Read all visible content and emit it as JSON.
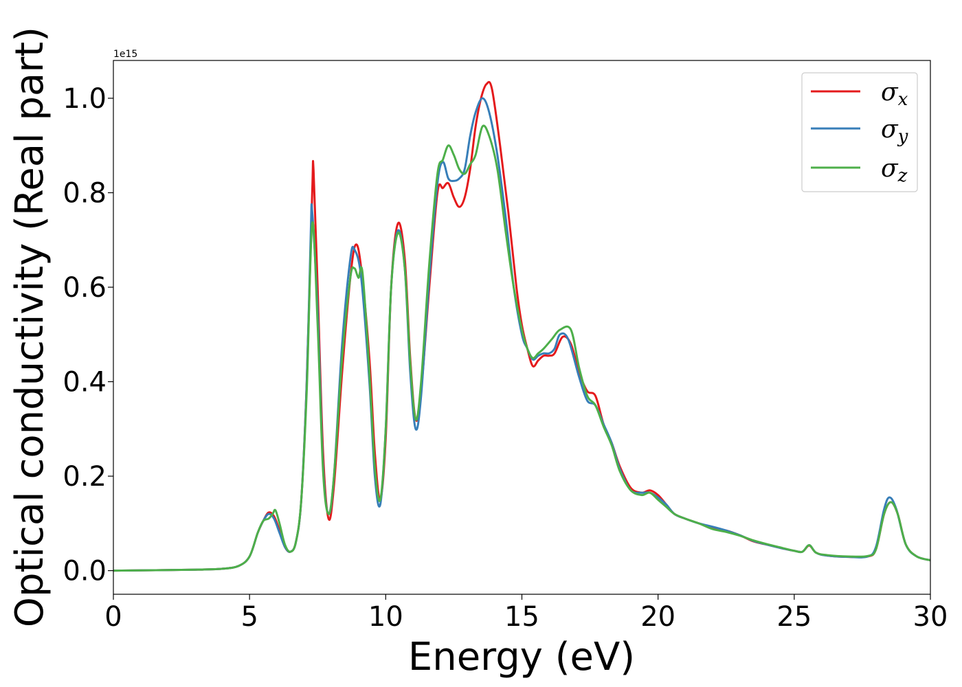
{
  "chart_data": {
    "type": "line",
    "title": "",
    "xlabel": "Energy (eV)",
    "ylabel": "Optical conductivity (Real part)",
    "y_offset_label": "1e15",
    "xlim": [
      0,
      30
    ],
    "ylim": [
      -0.05,
      1.08
    ],
    "x_ticks": [
      0,
      5,
      10,
      15,
      20,
      25,
      30
    ],
    "y_ticks": [
      0.0,
      0.2,
      0.4,
      0.6,
      0.8,
      1.0
    ],
    "x_tick_labels": [
      "0",
      "5",
      "10",
      "15",
      "20",
      "25",
      "30"
    ],
    "y_tick_labels": [
      "0.0",
      "0.2",
      "0.4",
      "0.6",
      "0.8",
      "1.0"
    ],
    "grid": false,
    "legend_position": "top-right",
    "series": [
      {
        "name": "σ",
        "subscript": "x",
        "color": "#e41a1c",
        "points": [
          [
            0,
            0
          ],
          [
            3,
            0.002
          ],
          [
            4,
            0.004
          ],
          [
            4.6,
            0.01
          ],
          [
            5,
            0.03
          ],
          [
            5.3,
            0.08
          ],
          [
            5.5,
            0.105
          ],
          [
            5.7,
            0.123
          ],
          [
            5.9,
            0.115
          ],
          [
            6.1,
            0.085
          ],
          [
            6.3,
            0.05
          ],
          [
            6.5,
            0.04
          ],
          [
            6.7,
            0.06
          ],
          [
            6.9,
            0.15
          ],
          [
            7.1,
            0.4
          ],
          [
            7.3,
            0.8
          ],
          [
            7.35,
            0.848
          ],
          [
            7.5,
            0.6
          ],
          [
            7.7,
            0.25
          ],
          [
            7.9,
            0.11
          ],
          [
            8.1,
            0.18
          ],
          [
            8.4,
            0.42
          ],
          [
            8.7,
            0.62
          ],
          [
            8.9,
            0.69
          ],
          [
            9.1,
            0.64
          ],
          [
            9.4,
            0.45
          ],
          [
            9.6,
            0.25
          ],
          [
            9.8,
            0.15
          ],
          [
            10,
            0.28
          ],
          [
            10.2,
            0.6
          ],
          [
            10.45,
            0.735
          ],
          [
            10.7,
            0.66
          ],
          [
            10.9,
            0.45
          ],
          [
            11.1,
            0.32
          ],
          [
            11.3,
            0.38
          ],
          [
            11.6,
            0.6
          ],
          [
            11.9,
            0.8
          ],
          [
            12.1,
            0.81
          ],
          [
            12.3,
            0.82
          ],
          [
            12.5,
            0.79
          ],
          [
            12.7,
            0.77
          ],
          [
            12.9,
            0.79
          ],
          [
            13.1,
            0.85
          ],
          [
            13.3,
            0.94
          ],
          [
            13.5,
            1.0
          ],
          [
            13.7,
            1.03
          ],
          [
            13.9,
            1.02
          ],
          [
            14.2,
            0.9
          ],
          [
            14.5,
            0.76
          ],
          [
            14.8,
            0.6
          ],
          [
            15.0,
            0.52
          ],
          [
            15.2,
            0.47
          ],
          [
            15.4,
            0.433
          ],
          [
            15.6,
            0.445
          ],
          [
            15.8,
            0.455
          ],
          [
            16.0,
            0.455
          ],
          [
            16.2,
            0.46
          ],
          [
            16.5,
            0.495
          ],
          [
            16.8,
            0.48
          ],
          [
            17.1,
            0.42
          ],
          [
            17.4,
            0.38
          ],
          [
            17.7,
            0.37
          ],
          [
            18.0,
            0.31
          ],
          [
            18.3,
            0.27
          ],
          [
            18.6,
            0.22
          ],
          [
            19.0,
            0.175
          ],
          [
            19.4,
            0.165
          ],
          [
            19.7,
            0.17
          ],
          [
            20.0,
            0.16
          ],
          [
            20.3,
            0.14
          ],
          [
            20.6,
            0.12
          ],
          [
            21.0,
            0.11
          ],
          [
            21.5,
            0.1
          ],
          [
            22,
            0.09
          ],
          [
            22.5,
            0.085
          ],
          [
            23,
            0.075
          ],
          [
            23.5,
            0.062
          ],
          [
            24,
            0.055
          ],
          [
            24.5,
            0.048
          ],
          [
            25,
            0.042
          ],
          [
            25.3,
            0.04
          ],
          [
            25.55,
            0.053
          ],
          [
            25.8,
            0.038
          ],
          [
            26.2,
            0.032
          ],
          [
            27,
            0.029
          ],
          [
            27.7,
            0.03
          ],
          [
            28.0,
            0.045
          ],
          [
            28.3,
            0.12
          ],
          [
            28.55,
            0.145
          ],
          [
            28.8,
            0.12
          ],
          [
            29.1,
            0.055
          ],
          [
            29.5,
            0.03
          ],
          [
            30,
            0.022
          ]
        ]
      },
      {
        "name": "σ",
        "subscript": "y",
        "color": "#377eb8",
        "points": [
          [
            0,
            0
          ],
          [
            3,
            0.002
          ],
          [
            4,
            0.004
          ],
          [
            4.6,
            0.01
          ],
          [
            5,
            0.03
          ],
          [
            5.3,
            0.08
          ],
          [
            5.5,
            0.105
          ],
          [
            5.7,
            0.12
          ],
          [
            5.9,
            0.11
          ],
          [
            6.1,
            0.08
          ],
          [
            6.3,
            0.05
          ],
          [
            6.5,
            0.04
          ],
          [
            6.7,
            0.06
          ],
          [
            6.9,
            0.15
          ],
          [
            7.1,
            0.4
          ],
          [
            7.25,
            0.72
          ],
          [
            7.3,
            0.76
          ],
          [
            7.5,
            0.55
          ],
          [
            7.7,
            0.22
          ],
          [
            7.9,
            0.12
          ],
          [
            8.1,
            0.2
          ],
          [
            8.4,
            0.48
          ],
          [
            8.7,
            0.66
          ],
          [
            8.85,
            0.68
          ],
          [
            9.1,
            0.62
          ],
          [
            9.4,
            0.4
          ],
          [
            9.6,
            0.2
          ],
          [
            9.8,
            0.14
          ],
          [
            10,
            0.3
          ],
          [
            10.2,
            0.6
          ],
          [
            10.45,
            0.72
          ],
          [
            10.7,
            0.64
          ],
          [
            10.9,
            0.42
          ],
          [
            11.1,
            0.3
          ],
          [
            11.3,
            0.37
          ],
          [
            11.6,
            0.62
          ],
          [
            11.9,
            0.82
          ],
          [
            12.1,
            0.865
          ],
          [
            12.3,
            0.83
          ],
          [
            12.5,
            0.825
          ],
          [
            12.7,
            0.83
          ],
          [
            12.9,
            0.85
          ],
          [
            13.1,
            0.92
          ],
          [
            13.3,
            0.97
          ],
          [
            13.55,
            1.0
          ],
          [
            13.8,
            0.97
          ],
          [
            14.1,
            0.88
          ],
          [
            14.4,
            0.75
          ],
          [
            14.7,
            0.6
          ],
          [
            15.0,
            0.5
          ],
          [
            15.2,
            0.47
          ],
          [
            15.4,
            0.447
          ],
          [
            15.6,
            0.455
          ],
          [
            15.8,
            0.46
          ],
          [
            16.0,
            0.46
          ],
          [
            16.2,
            0.47
          ],
          [
            16.4,
            0.5
          ],
          [
            16.7,
            0.49
          ],
          [
            17.1,
            0.41
          ],
          [
            17.4,
            0.36
          ],
          [
            17.7,
            0.35
          ],
          [
            18.0,
            0.31
          ],
          [
            18.3,
            0.27
          ],
          [
            18.6,
            0.215
          ],
          [
            19.0,
            0.17
          ],
          [
            19.4,
            0.165
          ],
          [
            19.7,
            0.165
          ],
          [
            20.0,
            0.155
          ],
          [
            20.3,
            0.14
          ],
          [
            20.6,
            0.12
          ],
          [
            21.0,
            0.11
          ],
          [
            21.5,
            0.1
          ],
          [
            22,
            0.093
          ],
          [
            22.5,
            0.085
          ],
          [
            23,
            0.075
          ],
          [
            23.5,
            0.063
          ],
          [
            24,
            0.055
          ],
          [
            24.5,
            0.048
          ],
          [
            25,
            0.042
          ],
          [
            25.3,
            0.04
          ],
          [
            25.55,
            0.054
          ],
          [
            25.8,
            0.038
          ],
          [
            26.2,
            0.032
          ],
          [
            27,
            0.029
          ],
          [
            27.7,
            0.03
          ],
          [
            28.0,
            0.05
          ],
          [
            28.3,
            0.13
          ],
          [
            28.5,
            0.155
          ],
          [
            28.75,
            0.13
          ],
          [
            29.1,
            0.055
          ],
          [
            29.5,
            0.03
          ],
          [
            30,
            0.022
          ]
        ]
      },
      {
        "name": "σ",
        "subscript": "z",
        "color": "#4daf4a",
        "points": [
          [
            0,
            0
          ],
          [
            3,
            0.002
          ],
          [
            4,
            0.004
          ],
          [
            4.6,
            0.01
          ],
          [
            5,
            0.03
          ],
          [
            5.3,
            0.08
          ],
          [
            5.5,
            0.105
          ],
          [
            5.7,
            0.11
          ],
          [
            5.85,
            0.12
          ],
          [
            5.95,
            0.128
          ],
          [
            6.1,
            0.1
          ],
          [
            6.3,
            0.055
          ],
          [
            6.5,
            0.04
          ],
          [
            6.7,
            0.06
          ],
          [
            6.9,
            0.15
          ],
          [
            7.1,
            0.38
          ],
          [
            7.3,
            0.735
          ],
          [
            7.5,
            0.52
          ],
          [
            7.7,
            0.21
          ],
          [
            7.9,
            0.12
          ],
          [
            8.1,
            0.2
          ],
          [
            8.4,
            0.45
          ],
          [
            8.7,
            0.62
          ],
          [
            8.85,
            0.64
          ],
          [
            9.0,
            0.62
          ],
          [
            9.15,
            0.63
          ],
          [
            9.4,
            0.42
          ],
          [
            9.6,
            0.22
          ],
          [
            9.8,
            0.15
          ],
          [
            10,
            0.3
          ],
          [
            10.2,
            0.6
          ],
          [
            10.45,
            0.715
          ],
          [
            10.7,
            0.64
          ],
          [
            10.9,
            0.44
          ],
          [
            11.1,
            0.32
          ],
          [
            11.3,
            0.4
          ],
          [
            11.6,
            0.65
          ],
          [
            11.9,
            0.84
          ],
          [
            12.1,
            0.87
          ],
          [
            12.3,
            0.9
          ],
          [
            12.5,
            0.88
          ],
          [
            12.7,
            0.85
          ],
          [
            12.9,
            0.84
          ],
          [
            13.1,
            0.86
          ],
          [
            13.3,
            0.88
          ],
          [
            13.55,
            0.94
          ],
          [
            13.8,
            0.92
          ],
          [
            14.1,
            0.85
          ],
          [
            14.4,
            0.72
          ],
          [
            14.7,
            0.6
          ],
          [
            15.0,
            0.51
          ],
          [
            15.2,
            0.47
          ],
          [
            15.4,
            0.45
          ],
          [
            15.6,
            0.46
          ],
          [
            15.8,
            0.47
          ],
          [
            16.1,
            0.49
          ],
          [
            16.4,
            0.51
          ],
          [
            16.8,
            0.51
          ],
          [
            17.1,
            0.43
          ],
          [
            17.4,
            0.37
          ],
          [
            17.7,
            0.35
          ],
          [
            18.0,
            0.305
          ],
          [
            18.3,
            0.265
          ],
          [
            18.6,
            0.21
          ],
          [
            19.0,
            0.17
          ],
          [
            19.4,
            0.16
          ],
          [
            19.7,
            0.165
          ],
          [
            20.0,
            0.15
          ],
          [
            20.3,
            0.135
          ],
          [
            20.6,
            0.12
          ],
          [
            21.0,
            0.11
          ],
          [
            21.5,
            0.1
          ],
          [
            22,
            0.088
          ],
          [
            22.5,
            0.082
          ],
          [
            23,
            0.074
          ],
          [
            23.5,
            0.064
          ],
          [
            24,
            0.056
          ],
          [
            24.5,
            0.049
          ],
          [
            25,
            0.042
          ],
          [
            25.3,
            0.04
          ],
          [
            25.55,
            0.054
          ],
          [
            25.8,
            0.038
          ],
          [
            26.2,
            0.033
          ],
          [
            27,
            0.03
          ],
          [
            27.7,
            0.031
          ],
          [
            28.0,
            0.045
          ],
          [
            28.3,
            0.12
          ],
          [
            28.55,
            0.145
          ],
          [
            28.8,
            0.12
          ],
          [
            29.1,
            0.055
          ],
          [
            29.5,
            0.03
          ],
          [
            30,
            0.022
          ]
        ]
      }
    ]
  }
}
